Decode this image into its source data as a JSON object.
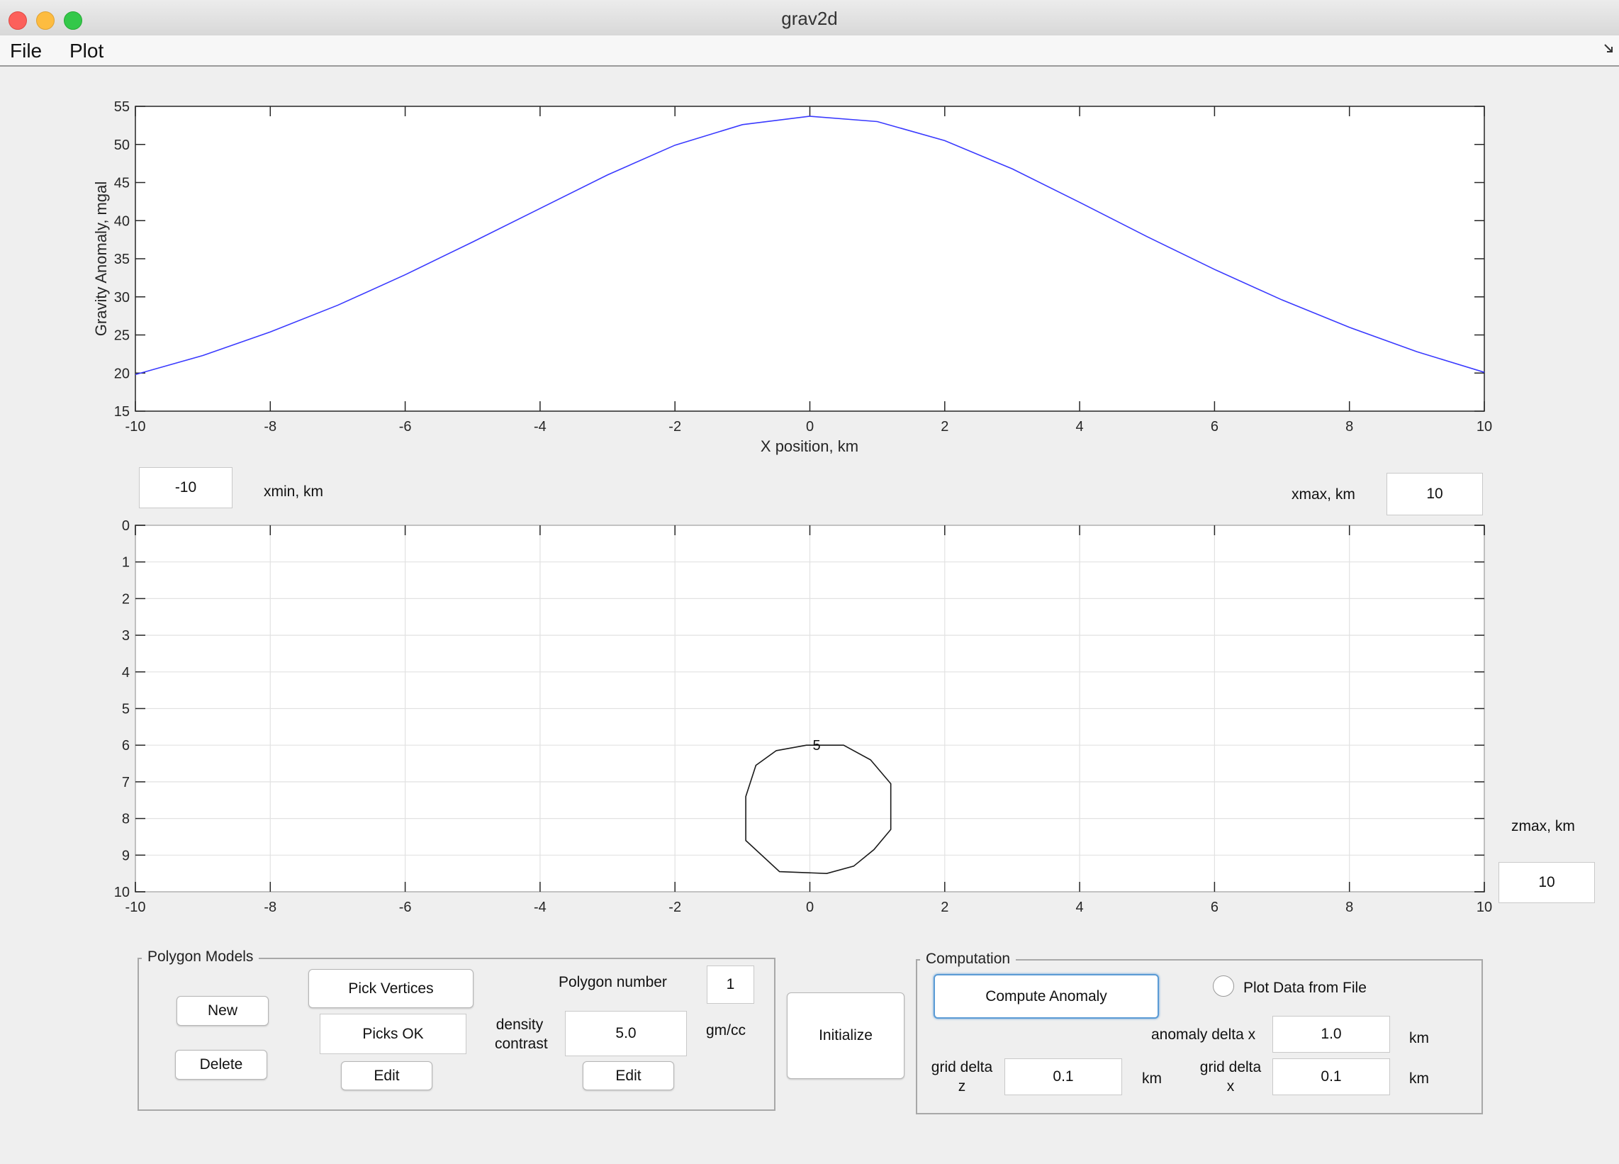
{
  "window": {
    "title": "grav2d"
  },
  "menu": {
    "items": [
      "File",
      "Plot"
    ]
  },
  "top_chart": {
    "type": "line",
    "x": [
      -10,
      -9,
      -8,
      -7,
      -6,
      -5,
      -4,
      -3,
      -2,
      -1,
      0,
      1,
      2,
      3,
      4,
      5,
      6,
      7,
      8,
      9,
      10
    ],
    "y": [
      19.8,
      22.3,
      25.4,
      28.9,
      32.9,
      37.2,
      41.6,
      46.0,
      49.9,
      52.6,
      53.7,
      53.0,
      50.5,
      46.8,
      42.4,
      37.9,
      33.6,
      29.6,
      26.0,
      22.8,
      20.1
    ],
    "xlabel": "X position, km",
    "ylabel": "Gravity Anomaly, mgal",
    "xlim": [
      -10,
      10
    ],
    "ylim": [
      15,
      55
    ],
    "xticks": [
      "-10",
      "-8",
      "-6",
      "-4",
      "-2",
      "0",
      "2",
      "4",
      "6",
      "8",
      "10"
    ],
    "yticks": [
      "15",
      "20",
      "25",
      "30",
      "35",
      "40",
      "45",
      "50",
      "55"
    ],
    "line_color": "#3a3aff",
    "grid": false
  },
  "model_chart": {
    "type": "line",
    "xlim": [
      -10,
      10
    ],
    "ylim": [
      0,
      10
    ],
    "y_reversed": true,
    "xticks": [
      "-10",
      "-8",
      "-6",
      "-4",
      "-2",
      "0",
      "2",
      "4",
      "6",
      "8",
      "10"
    ],
    "yticks": [
      "0",
      "1",
      "2",
      "3",
      "4",
      "5",
      "6",
      "7",
      "8",
      "9",
      "10"
    ],
    "grid": true,
    "polygon": {
      "x": [
        -0.5,
        -0.05,
        0.5,
        0.9,
        1.2,
        1.2,
        0.95,
        0.65,
        0.25,
        -0.45,
        -0.95,
        -0.95,
        -0.8,
        -0.5
      ],
      "z": [
        6.15,
        6.0,
        6.0,
        6.4,
        7.05,
        8.3,
        8.85,
        9.3,
        9.5,
        9.45,
        8.6,
        7.4,
        6.55,
        6.15
      ],
      "label": "5",
      "label_x": 0.1,
      "label_z": 6.0
    }
  },
  "xmin": {
    "value": "-10",
    "label": "xmin, km"
  },
  "xmax": {
    "value": "10",
    "label": "xmax, km"
  },
  "zmax": {
    "value": "10",
    "label": "zmax, km"
  },
  "polygon_models": {
    "title": "Polygon Models",
    "new_label": "New",
    "delete_label": "Delete",
    "pick_vertices_label": "Pick Vertices",
    "picks_ok_label": "Picks OK",
    "edit_label": "Edit",
    "polygon_number_label": "Polygon number",
    "polygon_number_value": "1",
    "density_label_1": "density",
    "density_label_2": "contrast",
    "density_value": "5.0",
    "density_unit": "gm/cc",
    "density_edit_label": "Edit"
  },
  "initialize_label": "Initialize",
  "computation": {
    "title": "Computation",
    "compute_label": "Compute Anomaly",
    "plot_data_label": "Plot Data from File",
    "anomaly_delta_x_label": "anomaly delta x",
    "anomaly_delta_x_value": "1.0",
    "anomaly_unit": "km",
    "grid_delta_z_label_1": "grid delta",
    "grid_delta_z_label_2": "z",
    "grid_delta_z_value": "0.1",
    "grid_delta_z_unit": "km",
    "grid_delta_x_label_1": "grid delta",
    "grid_delta_x_label_2": "x",
    "grid_delta_x_value": "0.1",
    "grid_delta_x_unit": "km"
  },
  "colors": {
    "close": "#fc605b",
    "minimize": "#fdbc40",
    "maximize": "#34c84a",
    "focus": "#5b9bd5"
  }
}
